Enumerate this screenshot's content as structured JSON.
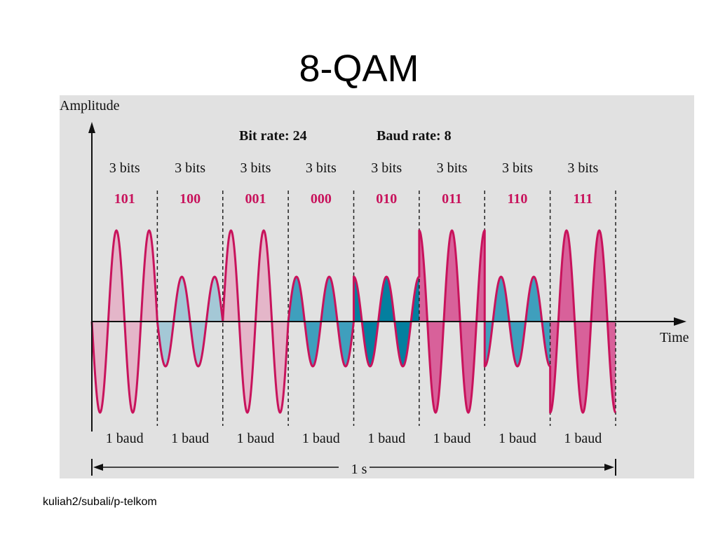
{
  "title": "8-QAM",
  "diagram": {
    "y_axis_label": "Amplitude",
    "x_axis_label": "Time",
    "bit_rate": "Bit rate: 24",
    "baud_rate": "Baud rate: 8",
    "duration_label": "1 s",
    "colors": {
      "background": "#e1e1e1",
      "stroke": "#c8135c",
      "bits_text": "#c8135c",
      "pink_light": "#e4b6c9",
      "pink_dark": "#d8619a",
      "blue_light": "#a4c8d6",
      "blue_mid": "#3f9fbd",
      "blue_dark": "#047f9f"
    },
    "segments": [
      {
        "bits_label": "3 bits",
        "bits": "101",
        "baud_label": "1 baud",
        "amplitude": "high",
        "phase": 180,
        "fill": "pink_light"
      },
      {
        "bits_label": "3 bits",
        "bits": "100",
        "baud_label": "1 baud",
        "amplitude": "low",
        "phase": 180,
        "fill": "blue_light"
      },
      {
        "bits_label": "3 bits",
        "bits": "001",
        "baud_label": "1 baud",
        "amplitude": "high",
        "phase": 0,
        "fill": "pink_light"
      },
      {
        "bits_label": "3 bits",
        "bits": "000",
        "baud_label": "1 baud",
        "amplitude": "low",
        "phase": 0,
        "fill": "blue_mid"
      },
      {
        "bits_label": "3 bits",
        "bits": "010",
        "baud_label": "1 baud",
        "amplitude": "low",
        "phase": 90,
        "fill": "blue_dark"
      },
      {
        "bits_label": "3 bits",
        "bits": "011",
        "baud_label": "1 baud",
        "amplitude": "high",
        "phase": 90,
        "fill": "pink_dark"
      },
      {
        "bits_label": "3 bits",
        "bits": "110",
        "baud_label": "1 baud",
        "amplitude": "low",
        "phase": 270,
        "fill": "blue_mid"
      },
      {
        "bits_label": "3 bits",
        "bits": "111",
        "baud_label": "1 baud",
        "amplitude": "high",
        "phase": 270,
        "fill": "pink_dark"
      }
    ]
  },
  "footer": "kuliah2/subali/p-telkom"
}
